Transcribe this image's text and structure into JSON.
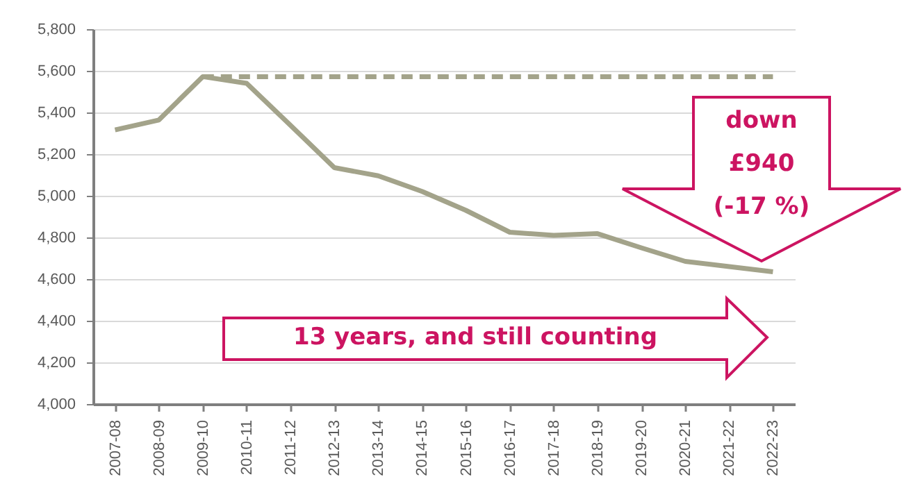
{
  "chart_data": {
    "type": "line",
    "categories": [
      "2007-08",
      "2008-09",
      "2009-10",
      "2010-11",
      "2011-12",
      "2012-13",
      "2013-14",
      "2014-15",
      "2015-16",
      "2016-17",
      "2017-18",
      "2018-19",
      "2019-20",
      "2020-21",
      "2021-22",
      "2022-23"
    ],
    "series": [
      {
        "color": "#a3a38a",
        "line_style": "solid",
        "values": [
          5316,
          5364,
          5572,
          5540,
          5338,
          5135,
          5096,
          5021,
          4930,
          4825,
          4810,
          4818,
          4750,
          4685,
          4660,
          4635
        ]
      },
      {
        "color": "#a3a38a",
        "line_style": "dashed",
        "values": [
          null,
          null,
          5572,
          5572,
          5572,
          5572,
          5572,
          5572,
          5572,
          5572,
          5572,
          5572,
          5572,
          5572,
          5572,
          5572
        ]
      }
    ],
    "ylim": [
      4000,
      5800
    ],
    "yticks": [
      {
        "value": 4000,
        "label": "4,000"
      },
      {
        "value": 4200,
        "label": "4,200"
      },
      {
        "value": 4400,
        "label": "4,400"
      },
      {
        "value": 4600,
        "label": "4,600"
      },
      {
        "value": 4800,
        "label": "4,800"
      },
      {
        "value": 5000,
        "label": "5,000"
      },
      {
        "value": 5200,
        "label": "5,200"
      },
      {
        "value": 5400,
        "label": "5,400"
      },
      {
        "value": 5600,
        "label": "5,600"
      },
      {
        "value": 5800,
        "label": "5,800"
      }
    ],
    "grid": "y",
    "marker": "none",
    "annotations": [
      "down £940 (-17 %)",
      "13 years, and still counting"
    ]
  }
}
